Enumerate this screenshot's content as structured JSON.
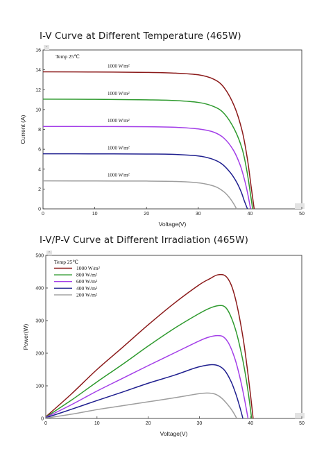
{
  "titles": {
    "chart1": "I-V Curve at Different Temperature (465W)",
    "chart2": "I-V/P-V Curve at Different Irradiation (465W)"
  },
  "chart_data": [
    {
      "type": "line",
      "title": "I-V Curve at Different Temperature (465W)",
      "xlabel": "Voltage(V)",
      "ylabel": "Current (A)",
      "xlim": [
        0,
        50
      ],
      "ylim": [
        0,
        16
      ],
      "xticks": [
        0,
        10,
        20,
        30,
        40,
        50
      ],
      "yticks": [
        0,
        2,
        4,
        6,
        8,
        10,
        12,
        14,
        16
      ],
      "grid": false,
      "legend_title": "Temp 25℃",
      "series": [
        {
          "name": "1000 W/m²",
          "color": "#8b1a1a",
          "x": [
            0,
            10,
            20,
            25,
            30,
            33,
            35,
            37,
            38.5,
            39.5,
            40.2,
            40.8
          ],
          "y": [
            13.8,
            13.78,
            13.74,
            13.68,
            13.5,
            13.05,
            12.2,
            10.3,
            7.8,
            5.0,
            2.3,
            0
          ]
        },
        {
          "name": "1000 W/m²",
          "color": "#2e9a2e",
          "x": [
            0,
            10,
            20,
            25,
            30,
            33,
            35,
            37,
            38.5,
            39.4,
            40.0,
            40.5
          ],
          "y": [
            11.05,
            11.03,
            10.98,
            10.92,
            10.72,
            10.3,
            9.6,
            8.0,
            6.0,
            3.8,
            1.8,
            0
          ]
        },
        {
          "name": "1000 W/m²",
          "color": "#a33ee8",
          "x": [
            0,
            10,
            20,
            25,
            30,
            33,
            35,
            36.8,
            38.1,
            39.0,
            39.6,
            40.1
          ],
          "y": [
            8.3,
            8.29,
            8.27,
            8.23,
            8.05,
            7.72,
            7.1,
            5.9,
            4.4,
            2.8,
            1.4,
            0
          ]
        },
        {
          "name": "1000 W/m²",
          "color": "#1f1f8f",
          "x": [
            0,
            10,
            20,
            25,
            30,
            32.5,
            34.5,
            36.2,
            37.4,
            38.3,
            38.9,
            39.5
          ],
          "y": [
            5.55,
            5.54,
            5.52,
            5.49,
            5.33,
            5.05,
            4.55,
            3.65,
            2.7,
            1.7,
            0.8,
            0
          ]
        },
        {
          "name": "1000 W/m²",
          "color": "#9e9e9e",
          "x": [
            0,
            10,
            20,
            25,
            29,
            31.5,
            33.5,
            35,
            36,
            36.8,
            37.4
          ],
          "y": [
            2.82,
            2.81,
            2.8,
            2.77,
            2.67,
            2.5,
            2.2,
            1.7,
            1.15,
            0.55,
            0
          ]
        }
      ]
    },
    {
      "type": "line",
      "title": "I-V/P-V Curve at Different Irradiation (465W)",
      "xlabel": "Voltage(V)",
      "ylabel": "Power(W)",
      "xlim": [
        0,
        50
      ],
      "ylim": [
        0,
        500
      ],
      "xticks": [
        0,
        10,
        20,
        30,
        40,
        50
      ],
      "yticks": [
        0,
        100,
        200,
        300,
        400,
        500
      ],
      "grid": false,
      "legend_title": "Temp 25℃",
      "legend_position": "top-left",
      "series": [
        {
          "name": "1000 W/m²",
          "color": "#8b1a1a",
          "x": [
            0,
            5,
            10,
            15,
            20,
            25,
            30,
            32,
            33.5,
            35,
            36.2,
            37.3,
            38.5,
            39.3,
            40.0,
            40.5
          ],
          "y": [
            5,
            75,
            150,
            218,
            287,
            352,
            410,
            428,
            440,
            438,
            410,
            350,
            250,
            160,
            70,
            0
          ]
        },
        {
          "name": "800 W/m²",
          "color": "#2e9a2e",
          "x": [
            0,
            5,
            10,
            15,
            20,
            25,
            30,
            32,
            33.8,
            35,
            36,
            37.2,
            38.4,
            39.2,
            39.8,
            40.2
          ],
          "y": [
            4,
            56,
            112,
            166,
            222,
            275,
            322,
            338,
            346,
            342,
            318,
            265,
            185,
            115,
            50,
            0
          ]
        },
        {
          "name": "600 W/m²",
          "color": "#a33ee8",
          "x": [
            0,
            5,
            10,
            15,
            20,
            25,
            30,
            32,
            33.5,
            34.7,
            35.8,
            37.0,
            38.0,
            38.8,
            39.5
          ],
          "y": [
            3,
            42,
            84,
            123,
            162,
            200,
            238,
            250,
            254,
            250,
            228,
            180,
            120,
            60,
            0
          ]
        },
        {
          "name": "400 W/m²",
          "color": "#1f1f8f",
          "x": [
            0,
            5,
            10,
            15,
            20,
            25,
            29,
            31,
            32.5,
            33.8,
            35,
            36.2,
            37.1,
            37.9,
            38.5
          ],
          "y": [
            2,
            28,
            55,
            81,
            108,
            132,
            154,
            162,
            165,
            161,
            146,
            113,
            76,
            35,
            0
          ]
        },
        {
          "name": "200 W/m²",
          "color": "#9e9e9e",
          "x": [
            0,
            5,
            10,
            15,
            20,
            25,
            28,
            30,
            31.5,
            33,
            34.3,
            35.5,
            36.5,
            37.3
          ],
          "y": [
            1,
            13,
            27,
            39,
            51,
            63,
            71,
            76,
            78,
            75,
            63,
            43,
            22,
            0
          ]
        }
      ]
    }
  ]
}
